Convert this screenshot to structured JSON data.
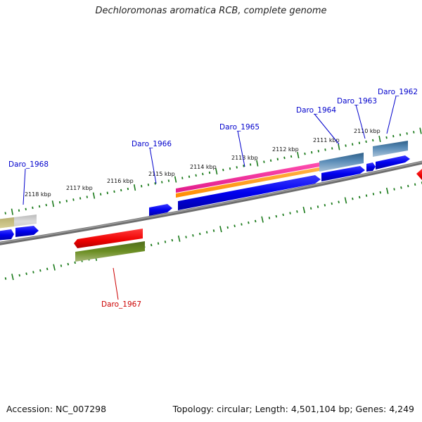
{
  "title": "Dechloromonas aromatica RCB, complete genome",
  "footer": {
    "accession": "Accession: NC_007298",
    "summary": "Topology: circular; Length: 4,501,104 bp; Genes: 4,249"
  },
  "ticks": [
    "2118 kbp",
    "2117 kbp",
    "2116 kbp",
    "2115 kbp",
    "2114 kbp",
    "2113 kbp",
    "2112 kbp",
    "2111 kbp",
    "2110 kbp"
  ],
  "genes": {
    "forward": [
      "Daro_1968",
      "Daro_1966",
      "Daro_1965",
      "Daro_1964",
      "Daro_1963",
      "Daro_1962"
    ],
    "reverse": [
      "Daro_1967"
    ]
  },
  "colors": {
    "forward_label": "#0000cc",
    "reverse_label": "#cc0000",
    "cds": "#0000ee",
    "backbone": "#888888",
    "tick": "#1a7a1a"
  }
}
